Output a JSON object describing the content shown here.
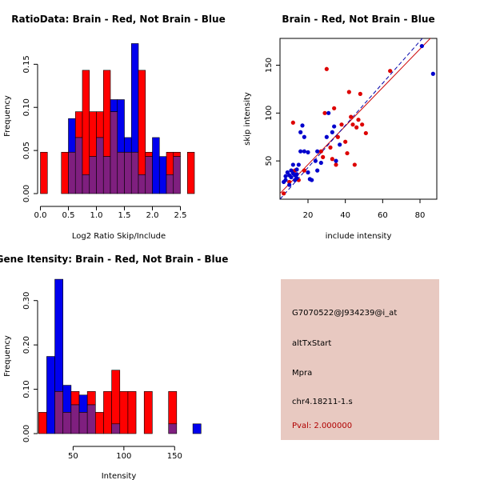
{
  "colors": {
    "red": "#ff0000",
    "blue": "#0000ee",
    "overlap": "#7f1f7f",
    "red_line": "#cc0000",
    "blue_line": "#0000aa",
    "red_point": "#dd0000",
    "blue_point": "#0000cc",
    "panel_bg": "#e8c9c1"
  },
  "chart_data": [
    {
      "type": "bar",
      "subtype": "overlaid-histogram",
      "title": "RatioData: Brain - Red, Not Brain - Blue",
      "xlabel": "Log2 Ratio Skip/Include",
      "ylabel": "Frequency",
      "xlim": [
        -0.05,
        2.85
      ],
      "ylim": [
        0,
        0.18
      ],
      "xticks": [
        0.0,
        0.5,
        1.0,
        1.5,
        2.0,
        2.5
      ],
      "xtick_labels": [
        "0.0",
        "0.5",
        "1.0",
        "1.5",
        "2.0",
        "2.5"
      ],
      "yticks": [
        0.0,
        0.05,
        0.1,
        0.15
      ],
      "ytick_labels": [
        "0.00",
        "0.05",
        "0.10",
        "0.15"
      ],
      "bin_width": 0.125,
      "bins": [
        0.0,
        0.125,
        0.25,
        0.375,
        0.5,
        0.625,
        0.75,
        0.875,
        1.0,
        1.125,
        1.25,
        1.375,
        1.5,
        1.625,
        1.75,
        1.875,
        2.0,
        2.125,
        2.25,
        2.375,
        2.5,
        2.625
      ],
      "series": [
        {
          "name": "Brain",
          "color": "red",
          "values": [
            0.048,
            0,
            0,
            0.048,
            0.048,
            0.095,
            0.143,
            0.095,
            0.095,
            0.143,
            0.095,
            0.048,
            0.048,
            0.048,
            0.143,
            0.048,
            0,
            0,
            0.048,
            0.048,
            0,
            0.048
          ]
        },
        {
          "name": "Not Brain",
          "color": "blue",
          "values": [
            0,
            0,
            0,
            0,
            0.087,
            0.065,
            0.022,
            0.043,
            0.065,
            0.043,
            0.109,
            0.109,
            0.065,
            0.174,
            0.022,
            0.043,
            0.065,
            0.043,
            0.022,
            0.043,
            0,
            0
          ]
        }
      ]
    },
    {
      "type": "scatter",
      "title": "Brain - Red, Not Brain - Blue",
      "xlabel": "include intensity",
      "ylabel": "skip intensity",
      "xlim": [
        5,
        89
      ],
      "ylim": [
        10,
        178
      ],
      "xticks": [
        20,
        40,
        60,
        80
      ],
      "xtick_labels": [
        "20",
        "40",
        "60",
        "80"
      ],
      "yticks": [
        50,
        100,
        150
      ],
      "ytick_labels": [
        "50",
        "100",
        "150"
      ],
      "series": [
        {
          "name": "Brain",
          "color": "red",
          "fit": [
            [
              5,
              16
            ],
            [
              89,
              185
            ]
          ],
          "points": [
            [
              7,
              16
            ],
            [
              10,
              28
            ],
            [
              12,
              90
            ],
            [
              13,
              40
            ],
            [
              15,
              30
            ],
            [
              18,
              40
            ],
            [
              27,
              60
            ],
            [
              28,
              54
            ],
            [
              29,
              100
            ],
            [
              30,
              146
            ],
            [
              32,
              64
            ],
            [
              33,
              52
            ],
            [
              34,
              105
            ],
            [
              35,
              46
            ],
            [
              36,
              75
            ],
            [
              38,
              88
            ],
            [
              40,
              70
            ],
            [
              41,
              58
            ],
            [
              42,
              122
            ],
            [
              43,
              96
            ],
            [
              44,
              88
            ],
            [
              45,
              46
            ],
            [
              46,
              85
            ],
            [
              47,
              93
            ],
            [
              48,
              120
            ],
            [
              49,
              88
            ],
            [
              51,
              79
            ],
            [
              64,
              144
            ]
          ]
        },
        {
          "name": "Not Brain",
          "color": "blue",
          "fit": [
            [
              5,
              10
            ],
            [
              89,
              195
            ]
          ],
          "points": [
            [
              7,
              28
            ],
            [
              8,
              34
            ],
            [
              8,
              30
            ],
            [
              9,
              38
            ],
            [
              10,
              35
            ],
            [
              10,
              25
            ],
            [
              11,
              40
            ],
            [
              11,
              33
            ],
            [
              12,
              46
            ],
            [
              12,
              37
            ],
            [
              13,
              35
            ],
            [
              13,
              30
            ],
            [
              14,
              41
            ],
            [
              14,
              36
            ],
            [
              14,
              32
            ],
            [
              15,
              46
            ],
            [
              16,
              60
            ],
            [
              16,
              80
            ],
            [
              17,
              87
            ],
            [
              18,
              75
            ],
            [
              18,
              60
            ],
            [
              20,
              38
            ],
            [
              20,
              59
            ],
            [
              21,
              31
            ],
            [
              22,
              30
            ],
            [
              24,
              50
            ],
            [
              25,
              40
            ],
            [
              25,
              60
            ],
            [
              27,
              48
            ],
            [
              30,
              75
            ],
            [
              31,
              100
            ],
            [
              33,
              80
            ],
            [
              34,
              86
            ],
            [
              35,
              50
            ],
            [
              37,
              67
            ],
            [
              81,
              170
            ],
            [
              87,
              141
            ]
          ]
        }
      ]
    },
    {
      "type": "bar",
      "subtype": "overlaid-histogram",
      "title": "Gene Itensity: Brain - Red, Not Brain - Blue",
      "xlabel": "Intensity",
      "ylabel": "Frequency",
      "xlim": [
        15,
        175
      ],
      "ylim": [
        0,
        0.35
      ],
      "xticks": [
        50,
        100,
        150
      ],
      "xtick_labels": [
        "50",
        "100",
        "150"
      ],
      "yticks": [
        0.0,
        0.1,
        0.2,
        0.3
      ],
      "ytick_labels": [
        "0.00",
        "0.10",
        "0.20",
        "0.30"
      ],
      "bin_width": 8,
      "bins": [
        16,
        24,
        32,
        40,
        48,
        56,
        64,
        72,
        80,
        88,
        96,
        104,
        112,
        120,
        128,
        136,
        144,
        152,
        160,
        168
      ],
      "series": [
        {
          "name": "Brain",
          "color": "red",
          "values": [
            0.048,
            0,
            0.095,
            0.048,
            0.095,
            0.048,
            0.095,
            0.048,
            0.095,
            0.143,
            0.095,
            0.095,
            0,
            0.095,
            0,
            0,
            0.095,
            0,
            0,
            0
          ]
        },
        {
          "name": "Not Brain",
          "color": "blue",
          "values": [
            0,
            0.174,
            0.348,
            0.109,
            0.065,
            0.087,
            0.065,
            0,
            0,
            0.022,
            0,
            0,
            0,
            0,
            0,
            0,
            0.022,
            0,
            0,
            0.022
          ]
        }
      ]
    }
  ],
  "info": {
    "probe_id": "G7070522@J934239@i_at",
    "event_type": "altTxStart",
    "gene": "Mpra",
    "cluster": "chr4.18211-1.s",
    "pval": "Pval: 2.000000"
  }
}
